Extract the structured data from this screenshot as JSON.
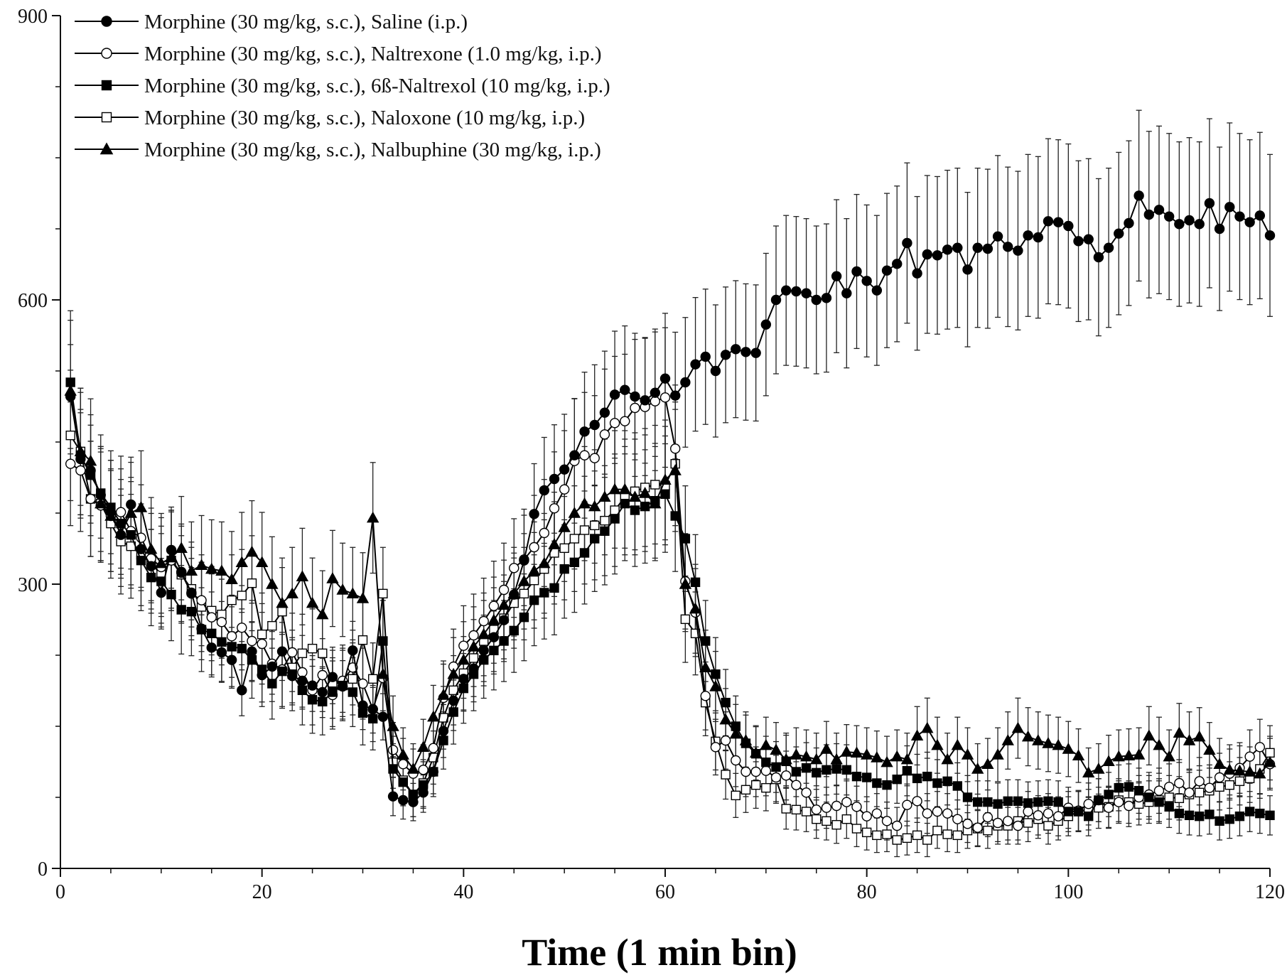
{
  "chart_data": {
    "type": "line",
    "title": "",
    "xlabel": "Time (1 min bin)",
    "ylabel": "",
    "xlim": [
      0,
      120
    ],
    "ylim": [
      0,
      900
    ],
    "xticks": [
      0,
      20,
      40,
      60,
      80,
      100,
      120
    ],
    "yticks": [
      0,
      300,
      600,
      900
    ],
    "grid": false,
    "legend_position": "top-left",
    "error_bars": true,
    "series": [
      {
        "name": "Morphine (30 mg/kg, s.c.), Saline (i.p.)",
        "marker": "filled-circle",
        "values": [
          498,
          432,
          420,
          394,
          376,
          352,
          384,
          337,
          319,
          291,
          336,
          313,
          291,
          253,
          233,
          228,
          220,
          188,
          229,
          204,
          213,
          229,
          203,
          198,
          193,
          186,
          202,
          192,
          230,
          172,
          168,
          160,
          76,
          72,
          70,
          80,
          102,
          145,
          177,
          200,
          211,
          230,
          244,
          262,
          289,
          325,
          374,
          399,
          411,
          421,
          436,
          461,
          468,
          481,
          500,
          505,
          498,
          494,
          502,
          517,
          499,
          513,
          532,
          540,
          525,
          542,
          548,
          545,
          544,
          574,
          600,
          610,
          609,
          607,
          600,
          602,
          625,
          607,
          630,
          620,
          610,
          631,
          638,
          660,
          628,
          648,
          647,
          653,
          655,
          632,
          655,
          654,
          667,
          656,
          652,
          668,
          666,
          683,
          682,
          678,
          662,
          664,
          645,
          655,
          670,
          681,
          710,
          690,
          695,
          688,
          680,
          684,
          680,
          702,
          675,
          698,
          688,
          682,
          689,
          668
        ]
      },
      {
        "name": "Morphine (30 mg/kg, s.c.), Naltrexone (1.0 mg/kg, i.p.)",
        "marker": "open-circle",
        "values": [
          427,
          420,
          390,
          383,
          372,
          376,
          356,
          349,
          327,
          318,
          325,
          312,
          290,
          283,
          265,
          260,
          245,
          254,
          240,
          237,
          216,
          210,
          228,
          207,
          188,
          204,
          183,
          198,
          212,
          195,
          168,
          201,
          125,
          110,
          100,
          104,
          127,
          180,
          213,
          235,
          246,
          261,
          277,
          294,
          317,
          326,
          339,
          354,
          380,
          400,
          430,
          436,
          433,
          458,
          470,
          472,
          486,
          487,
          493,
          497,
          443,
          303,
          270,
          182,
          128,
          135,
          114,
          102,
          102,
          103,
          96,
          98,
          88,
          80,
          62,
          64,
          66,
          70,
          65,
          55,
          58,
          50,
          45,
          67,
          71,
          58,
          60,
          58,
          52,
          47,
          43,
          54,
          48,
          50,
          45,
          60,
          56,
          58,
          55,
          64,
          61,
          68,
          72,
          64,
          70,
          66,
          75,
          78,
          82,
          86,
          90,
          80,
          92,
          85,
          96,
          100,
          106,
          118,
          128,
          110
        ]
      },
      {
        "name": "Morphine (30 mg/kg, s.c.), 6ß-Naltrexol (10 mg/kg, i.p.)",
        "marker": "filled-square",
        "values": [
          513,
          436,
          415,
          396,
          381,
          364,
          352,
          325,
          307,
          303,
          289,
          273,
          271,
          252,
          248,
          239,
          234,
          232,
          220,
          210,
          195,
          208,
          205,
          188,
          178,
          176,
          186,
          193,
          186,
          164,
          158,
          240,
          105,
          91,
          78,
          88,
          102,
          135,
          165,
          190,
          205,
          220,
          230,
          240,
          251,
          265,
          283,
          291,
          296,
          316,
          323,
          333,
          348,
          356,
          369,
          385,
          378,
          382,
          388,
          395,
          372,
          348,
          302,
          240,
          205,
          175,
          150,
          132,
          121,
          112,
          107,
          113,
          102,
          106,
          101,
          104,
          105,
          104,
          97,
          96,
          90,
          88,
          94,
          103,
          95,
          97,
          90,
          92,
          87,
          75,
          70,
          70,
          68,
          71,
          71,
          69,
          70,
          71,
          70,
          60,
          60,
          55,
          72,
          78,
          85,
          86,
          82,
          75,
          70,
          65,
          58,
          56,
          55,
          57,
          50,
          52,
          55,
          60,
          58,
          56
        ]
      },
      {
        "name": "Morphine (30 mg/kg, s.c.), Naloxone (10 mg/kg, i.p.)",
        "marker": "open-square",
        "values": [
          457,
          440,
          390,
          385,
          364,
          345,
          340,
          331,
          322,
          310,
          325,
          310,
          295,
          276,
          272,
          268,
          283,
          288,
          301,
          247,
          256,
          271,
          212,
          227,
          232,
          227,
          196,
          195,
          200,
          241,
          200,
          290,
          112,
          93,
          78,
          90,
          117,
          159,
          188,
          206,
          222,
          240,
          252,
          264,
          280,
          290,
          304,
          316,
          333,
          338,
          348,
          357,
          362,
          367,
          378,
          392,
          398,
          402,
          405,
          404,
          427,
          263,
          248,
          175,
          134,
          99,
          77,
          83,
          88,
          85,
          94,
          63,
          62,
          60,
          52,
          50,
          46,
          52,
          42,
          38,
          35,
          36,
          30,
          32,
          35,
          30,
          40,
          36,
          35,
          40,
          42,
          40,
          45,
          45,
          50,
          48,
          52,
          45,
          50,
          55,
          60,
          62,
          64,
          65,
          72,
          70,
          68,
          70,
          72,
          75,
          74,
          78,
          80,
          82,
          86,
          88,
          92,
          95,
          105,
          122
        ]
      },
      {
        "name": "Morphine (30 mg/kg, s.c.), Nalbuphine (30 mg/kg, i.p.)",
        "marker": "filled-triangle",
        "values": [
          504,
          440,
          430,
          385,
          372,
          354,
          375,
          381,
          337,
          322,
          328,
          338,
          314,
          320,
          316,
          314,
          305,
          323,
          334,
          323,
          300,
          280,
          290,
          308,
          280,
          268,
          306,
          294,
          290,
          285,
          370,
          205,
          150,
          120,
          105,
          128,
          160,
          183,
          205,
          220,
          234,
          247,
          262,
          278,
          290,
          303,
          314,
          322,
          342,
          360,
          375,
          385,
          382,
          392,
          400,
          400,
          392,
          396,
          385,
          410,
          420,
          300,
          274,
          212,
          192,
          157,
          142,
          135,
          122,
          130,
          125,
          115,
          120,
          118,
          115,
          126,
          115,
          123,
          122,
          120,
          117,
          112,
          118,
          115,
          140,
          148,
          130,
          115,
          130,
          120,
          105,
          110,
          120,
          135,
          148,
          139,
          135,
          132,
          130,
          126,
          119,
          101,
          105,
          113,
          118,
          119,
          120,
          140,
          130,
          118,
          143,
          135,
          139,
          125,
          110,
          104,
          103,
          102,
          100,
          112
        ]
      }
    ]
  }
}
